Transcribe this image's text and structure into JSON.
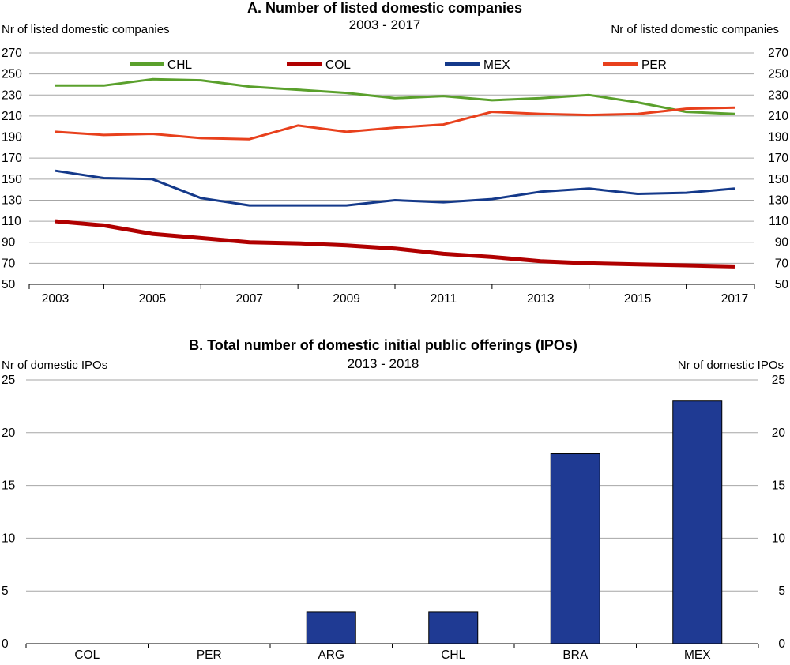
{
  "chart_data": [
    {
      "type": "line",
      "title": "A. Number of listed domestic companies",
      "subtitle": "2003 - 2017",
      "ylabel_left": "Nr of listed domestic companies",
      "ylabel_right": "Nr of listed domestic companies",
      "x": [
        2003,
        2004,
        2005,
        2006,
        2007,
        2008,
        2009,
        2010,
        2011,
        2012,
        2013,
        2014,
        2015,
        2016,
        2017
      ],
      "x_tick_labels": [
        "2003",
        "2005",
        "2007",
        "2009",
        "2011",
        "2013",
        "2015",
        "2017"
      ],
      "ylim": [
        50,
        270
      ],
      "y_ticks": [
        50,
        70,
        90,
        110,
        130,
        150,
        170,
        190,
        210,
        230,
        250,
        270
      ],
      "grid": true,
      "legend_position": "top",
      "series": [
        {
          "name": "CHL",
          "color": "#5aa02c",
          "values": [
            239,
            239,
            245,
            244,
            238,
            235,
            232,
            227,
            229,
            225,
            227,
            230,
            223,
            214,
            212
          ]
        },
        {
          "name": "COL",
          "color": "#b00000",
          "values": [
            110,
            106,
            98,
            94,
            90,
            89,
            87,
            84,
            79,
            76,
            72,
            70,
            69,
            68,
            67
          ]
        },
        {
          "name": "MEX",
          "color": "#14398a",
          "values": [
            158,
            151,
            150,
            132,
            125,
            125,
            125,
            130,
            128,
            131,
            138,
            141,
            136,
            137,
            141
          ]
        },
        {
          "name": "PER",
          "color": "#e8401c",
          "values": [
            195,
            192,
            193,
            189,
            188,
            201,
            195,
            199,
            202,
            214,
            212,
            211,
            212,
            217,
            218
          ]
        }
      ]
    },
    {
      "type": "bar",
      "title": "B. Total number of domestic initial public offerings (IPOs)",
      "subtitle": "2013 - 2018",
      "ylabel_left": "Nr of domestic IPOs",
      "ylabel_right": "Nr of domestic IPOs",
      "categories": [
        "COL",
        "PER",
        "ARG",
        "CHL",
        "BRA",
        "MEX"
      ],
      "values": [
        0,
        0,
        3,
        3,
        18,
        23
      ],
      "ylim": [
        0,
        25
      ],
      "y_ticks": [
        0,
        5,
        10,
        15,
        20,
        25
      ],
      "grid": true,
      "bar_color": "#1f3a93"
    }
  ]
}
